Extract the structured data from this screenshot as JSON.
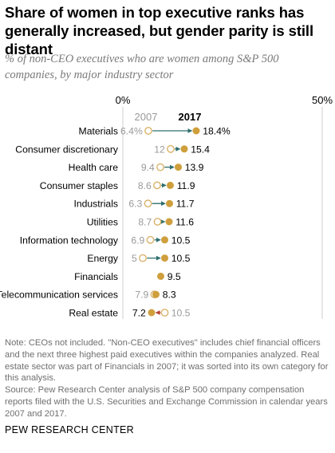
{
  "title": "Share of women in top executive ranks has generally increased, but gender parity is still distant",
  "subtitle": "% of non-CEO executives who are women among S&P 500 companies, by major industry sector",
  "chart_data": {
    "type": "dot-arrow",
    "xlim": [
      0,
      50
    ],
    "axis_labels": [
      "0%",
      "50%"
    ],
    "series_labels": [
      "2007",
      "2017"
    ],
    "colors": {
      "v2007": "#d8b26a",
      "v2017": "#cf9f3c",
      "arrow": "#2f6e6e",
      "axis": "#cfcfcf",
      "text_2007": "#9a9a9a"
    },
    "categories": [
      "Materials",
      "Consumer discretionary",
      "Health care",
      "Consumer staples",
      "Industrials",
      "Utilities",
      "Information technology",
      "Energy",
      "Financials",
      "Telecommunication services",
      "Real estate"
    ],
    "v2007": [
      6.4,
      12,
      9.4,
      8.6,
      6.3,
      8.7,
      6.9,
      5,
      9.5,
      7.9,
      10.5
    ],
    "v2017": [
      18.4,
      15.4,
      13.9,
      11.9,
      11.7,
      11.6,
      10.5,
      10.5,
      9.5,
      8.3,
      7.2
    ],
    "labels_2007": [
      "6.4%",
      "12",
      "9.4",
      "8.6",
      "6.3",
      "8.7",
      "6.9",
      "5",
      "",
      "7.9",
      "10.5"
    ],
    "labels_2017": [
      "18.4%",
      "15.4",
      "13.9",
      "11.9",
      "11.7",
      "11.6",
      "10.5",
      "10.5",
      "9.5",
      "8.3",
      "7.2"
    ]
  },
  "notes": [
    "Note: CEOs not included. \"Non-CEO executives\" includes chief financial officers and the next three highest paid executives within the companies analyzed. Real estate sector was part of Financials in 2007; it was sorted into its own category for this analysis.",
    "Source: Pew Research Center analysis of S&P 500 company compensation reports filed with the U.S. Securities and Exchange Commission in calendar years 2007 and 2017."
  ],
  "footer": "PEW RESEARCH CENTER"
}
